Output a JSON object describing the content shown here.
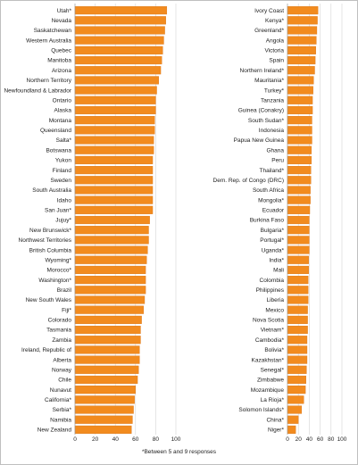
{
  "footnote": "*Between 5 and 9 responses",
  "colors": {
    "bar": "#f28b1e",
    "bar_edge": "#d9761a",
    "grid": "#d4d4d4",
    "text": "#222222"
  },
  "chart_data": [
    {
      "type": "bar",
      "orientation": "horizontal",
      "title": "",
      "xlabel": "",
      "ylabel": "",
      "xlim": [
        0,
        100
      ],
      "xticks": [
        0,
        20,
        40,
        60,
        80,
        100
      ],
      "grid": true,
      "categories": [
        "Utah*",
        "Nevada",
        "Saskatchewan",
        "Western Australia",
        "Quebec",
        "Manitoba",
        "Arizona",
        "Northern Territory",
        "Newfoundland & Labrador",
        "Ontario",
        "Alaska",
        "Montana",
        "Queensland",
        "Salta*",
        "Botswana",
        "Yukon",
        "Finland",
        "Sweden",
        "South Australia",
        "Idaho",
        "San Juan*",
        "Jujuy*",
        "New Brunswick*",
        "Northwest Territories",
        "British Columbia",
        "Wyoming*",
        "Morocco*",
        "Washington*",
        "Brazil",
        "New South Wales",
        "Fiji*",
        "Colorado",
        "Tasmania",
        "Zambia",
        "Ireland, Republic of",
        "Alberta",
        "Norway",
        "Chile",
        "Nunavut",
        "California*",
        "Serbia*",
        "Namibia",
        "New Zealand"
      ],
      "values": [
        91,
        90,
        89,
        88,
        87,
        86,
        85,
        83,
        81,
        80,
        80,
        79,
        79,
        78,
        78,
        77,
        77,
        77,
        77,
        77,
        77,
        74,
        73,
        73,
        72,
        71,
        70,
        70,
        70,
        69,
        68,
        66,
        65,
        65,
        64,
        64,
        63,
        62,
        60,
        59,
        58,
        57,
        56
      ]
    },
    {
      "type": "bar",
      "orientation": "horizontal",
      "title": "",
      "xlabel": "",
      "ylabel": "",
      "xlim": [
        0,
        100
      ],
      "xticks": [
        0,
        20,
        40,
        60,
        80,
        100
      ],
      "grid": true,
      "categories": [
        "Ivory Coast",
        "Kenya*",
        "Greenland*",
        "Angola",
        "Victoria",
        "Spain",
        "Northern Ireland*",
        "Mauritania*",
        "Turkey*",
        "Tanzania",
        "Guinea (Conakry)",
        "South Sudan*",
        "Indonesia",
        "Papua New Guinea",
        "Ghana",
        "Peru",
        "Thailand*",
        "Dem. Rep. of Congo (DRC)",
        "South Africa",
        "Mongolia*",
        "Ecuador",
        "Burkina Faso",
        "Bulgaria*",
        "Portugal*",
        "Uganda*",
        "India*",
        "Mali",
        "Colombia",
        "Philippines",
        "Liberia",
        "Mexico",
        "Nova Scotia",
        "Vietnam*",
        "Cambodia*",
        "Bolivia*",
        "Kazakhstan*",
        "Senegal*",
        "Zimbabwe",
        "Mozambique",
        "La Rioja*",
        "Solomon Islands*",
        "China*",
        "Niger*"
      ],
      "values": [
        56,
        55,
        54,
        53,
        52,
        51,
        50,
        48,
        47,
        46,
        46,
        45,
        45,
        45,
        44,
        44,
        43,
        43,
        42,
        42,
        41,
        40,
        40,
        40,
        40,
        39,
        39,
        38,
        38,
        38,
        37,
        37,
        37,
        36,
        36,
        36,
        35,
        34,
        33,
        30,
        26,
        20,
        15
      ]
    }
  ]
}
